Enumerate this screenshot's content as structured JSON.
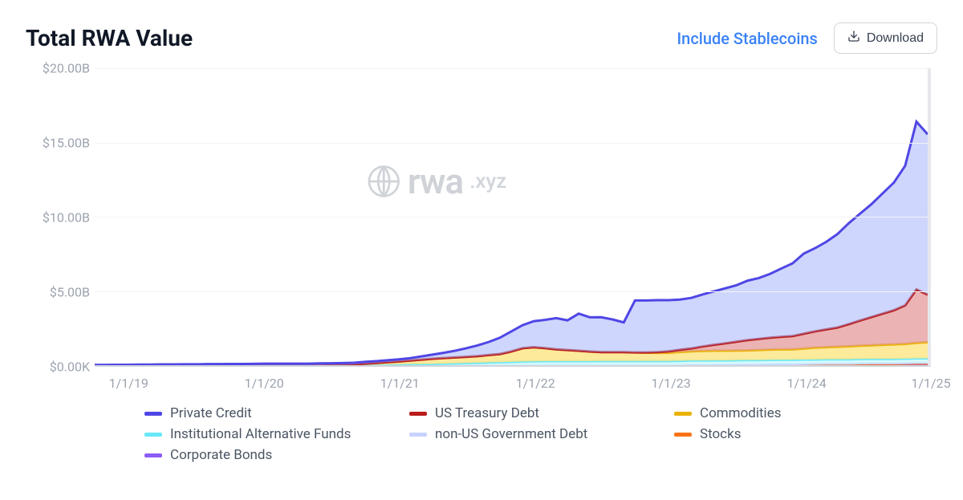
{
  "title": "Total RWA Value",
  "toggle_link": "Include Stablecoins",
  "download_label": "Download",
  "watermark": {
    "main": "rwa",
    "suffix": ".xyz"
  },
  "chart": {
    "type": "stacked-area",
    "background_color": "#ffffff",
    "grid_color": "#f3f4f6",
    "axis_color": "#d1d5db",
    "label_color": "#9ca3af",
    "label_fontsize": 16,
    "title_fontsize": 28,
    "ylim": [
      0,
      20
    ],
    "y_unit": "B",
    "y_ticks": [
      {
        "v": 0,
        "label": "$0.00K"
      },
      {
        "v": 5,
        "label": "$5.00B"
      },
      {
        "v": 10,
        "label": "$10.00B"
      },
      {
        "v": 15,
        "label": "$15.00B"
      },
      {
        "v": 20,
        "label": "$20.00B"
      }
    ],
    "xlim": [
      0,
      74
    ],
    "x_ticks": [
      {
        "v": 3,
        "label": "1/1/19"
      },
      {
        "v": 15,
        "label": "1/1/20"
      },
      {
        "v": 27,
        "label": "1/1/21"
      },
      {
        "v": 39,
        "label": "1/1/22"
      },
      {
        "v": 51,
        "label": "1/1/23"
      },
      {
        "v": 63,
        "label": "1/1/24"
      },
      {
        "v": 74,
        "label": "1/1/25"
      }
    ],
    "series": [
      {
        "name": "Corporate Bonds",
        "stroke": "#8b5cf6",
        "fill": "#ddd6fe",
        "fill_opacity": 0.7,
        "data": [
          0,
          0,
          0,
          0,
          0,
          0,
          0,
          0,
          0,
          0,
          0,
          0,
          0,
          0,
          0,
          0,
          0,
          0,
          0,
          0,
          0,
          0,
          0,
          0,
          0,
          0,
          0,
          0,
          0,
          0,
          0,
          0,
          0,
          0,
          0,
          0,
          0,
          0,
          0,
          0,
          0,
          0,
          0,
          0,
          0,
          0,
          0,
          0,
          0,
          0,
          0,
          0,
          0,
          0.01,
          0.01,
          0.01,
          0.01,
          0.01,
          0.02,
          0.02,
          0.02,
          0.02,
          0.02,
          0.03,
          0.03,
          0.03,
          0.03,
          0.03,
          0.04,
          0.04,
          0.04,
          0.04,
          0.04,
          0.05,
          0.05
        ]
      },
      {
        "name": "Stocks",
        "stroke": "#f97316",
        "fill": "#fed7aa",
        "fill_opacity": 0.7,
        "data": [
          0,
          0,
          0,
          0,
          0,
          0,
          0,
          0,
          0,
          0,
          0,
          0,
          0,
          0,
          0,
          0,
          0,
          0,
          0,
          0,
          0,
          0,
          0,
          0,
          0,
          0,
          0,
          0,
          0,
          0,
          0,
          0,
          0,
          0,
          0,
          0,
          0,
          0,
          0,
          0,
          0,
          0,
          0,
          0,
          0,
          0,
          0,
          0,
          0,
          0,
          0,
          0,
          0.01,
          0.01,
          0.01,
          0.02,
          0.02,
          0.02,
          0.02,
          0.02,
          0.03,
          0.03,
          0.03,
          0.03,
          0.04,
          0.04,
          0.04,
          0.04,
          0.05,
          0.05,
          0.05,
          0.05,
          0.06,
          0.06,
          0.06
        ]
      },
      {
        "name": "non-US Government Debt",
        "stroke": "#c7d2fe",
        "fill": "#e0e7ff",
        "fill_opacity": 0.7,
        "data": [
          0,
          0,
          0,
          0,
          0,
          0,
          0,
          0,
          0,
          0,
          0,
          0,
          0,
          0,
          0,
          0,
          0,
          0,
          0,
          0,
          0,
          0,
          0,
          0,
          0,
          0,
          0,
          0,
          0,
          0,
          0,
          0,
          0,
          0,
          0,
          0,
          0,
          0,
          0,
          0,
          0,
          0,
          0,
          0,
          0,
          0,
          0,
          0,
          0,
          0,
          0,
          0,
          0,
          0.01,
          0.01,
          0.01,
          0.01,
          0.02,
          0.02,
          0.02,
          0.02,
          0.03,
          0.03,
          0.03,
          0.03,
          0.04,
          0.04,
          0.04,
          0.04,
          0.05,
          0.05,
          0.05,
          0.05,
          0.06,
          0.06
        ]
      },
      {
        "name": "Institutional Alternative Funds",
        "stroke": "#67e8f9",
        "fill": "#cffafe",
        "fill_opacity": 0.8,
        "data": [
          0,
          0,
          0,
          0,
          0,
          0,
          0,
          0,
          0,
          0,
          0,
          0,
          0,
          0,
          0,
          0,
          0,
          0,
          0,
          0,
          0,
          0,
          0,
          0,
          0.02,
          0.03,
          0.04,
          0.05,
          0.06,
          0.07,
          0.08,
          0.1,
          0.12,
          0.14,
          0.16,
          0.18,
          0.2,
          0.22,
          0.24,
          0.26,
          0.27,
          0.27,
          0.27,
          0.27,
          0.27,
          0.28,
          0.28,
          0.28,
          0.28,
          0.28,
          0.28,
          0.28,
          0.28,
          0.28,
          0.28,
          0.28,
          0.28,
          0.28,
          0.28,
          0.28,
          0.28,
          0.28,
          0.28,
          0.28,
          0.28,
          0.28,
          0.28,
          0.28,
          0.28,
          0.28,
          0.28,
          0.28,
          0.28,
          0.28,
          0.28
        ]
      },
      {
        "name": "Commodities",
        "stroke": "#eab308",
        "fill": "#fde68a",
        "fill_opacity": 0.85,
        "data": [
          0,
          0,
          0,
          0,
          0,
          0,
          0.001,
          0.001,
          0.001,
          0.001,
          0.001,
          0.001,
          0.001,
          0.001,
          0.001,
          0.001,
          0.001,
          0.001,
          0.001,
          0.001,
          0.01,
          0.02,
          0.03,
          0.05,
          0.08,
          0.12,
          0.16,
          0.2,
          0.25,
          0.3,
          0.35,
          0.38,
          0.4,
          0.42,
          0.45,
          0.5,
          0.55,
          0.7,
          0.9,
          0.95,
          0.88,
          0.8,
          0.75,
          0.7,
          0.65,
          0.6,
          0.6,
          0.6,
          0.58,
          0.56,
          0.55,
          0.55,
          0.6,
          0.62,
          0.65,
          0.65,
          0.65,
          0.65,
          0.65,
          0.68,
          0.7,
          0.7,
          0.7,
          0.75,
          0.8,
          0.82,
          0.85,
          0.88,
          0.9,
          0.92,
          0.95,
          0.98,
          1.0,
          1.05,
          1.1
        ]
      },
      {
        "name": "US Treasury Debt",
        "stroke": "#b91c1c",
        "fill": "#e49a9a",
        "fill_opacity": 0.75,
        "data": [
          0,
          0,
          0,
          0,
          0,
          0,
          0,
          0,
          0,
          0,
          0,
          0,
          0,
          0,
          0,
          0,
          0,
          0,
          0,
          0,
          0,
          0,
          0,
          0,
          0,
          0,
          0,
          0,
          0,
          0,
          0,
          0,
          0,
          0,
          0,
          0,
          0,
          0,
          0,
          0,
          0,
          0,
          0,
          0,
          0,
          0,
          0,
          0,
          0,
          0.02,
          0.05,
          0.1,
          0.15,
          0.2,
          0.3,
          0.4,
          0.5,
          0.6,
          0.7,
          0.75,
          0.8,
          0.85,
          0.9,
          1.0,
          1.1,
          1.2,
          1.3,
          1.5,
          1.7,
          1.9,
          2.1,
          2.3,
          2.6,
          3.6,
          3.2
        ]
      },
      {
        "name": "Private Credit",
        "stroke": "#4f46e5",
        "fill": "#a5b4fc",
        "fill_opacity": 0.55,
        "data": [
          0.02,
          0.02,
          0.03,
          0.03,
          0.04,
          0.04,
          0.05,
          0.05,
          0.06,
          0.06,
          0.07,
          0.07,
          0.08,
          0.08,
          0.09,
          0.1,
          0.1,
          0.1,
          0.1,
          0.1,
          0.11,
          0.11,
          0.11,
          0.11,
          0.12,
          0.12,
          0.13,
          0.14,
          0.16,
          0.22,
          0.28,
          0.35,
          0.45,
          0.58,
          0.72,
          0.88,
          1.1,
          1.35,
          1.55,
          1.75,
          1.9,
          2.1,
          2.0,
          2.5,
          2.3,
          2.35,
          2.2,
          2.0,
          3.5,
          3.5,
          3.5,
          3.45,
          3.38,
          3.4,
          3.5,
          3.6,
          3.7,
          3.8,
          4.0,
          4.1,
          4.3,
          4.6,
          4.9,
          5.4,
          5.6,
          5.9,
          6.3,
          6.8,
          7.2,
          7.6,
          8.1,
          8.6,
          9.4,
          11.3,
          10.8
        ]
      }
    ]
  },
  "legend": {
    "columns": 3,
    "items": [
      {
        "label": "Private Credit",
        "color": "#4f46e5"
      },
      {
        "label": "US Treasury Debt",
        "color": "#b91c1c"
      },
      {
        "label": "Commodities",
        "color": "#eab308"
      },
      {
        "label": "Institutional Alternative Funds",
        "color": "#67e8f9"
      },
      {
        "label": "non-US Government Debt",
        "color": "#c7d2fe"
      },
      {
        "label": "Stocks",
        "color": "#f97316"
      },
      {
        "label": "Corporate Bonds",
        "color": "#8b5cf6"
      }
    ]
  }
}
